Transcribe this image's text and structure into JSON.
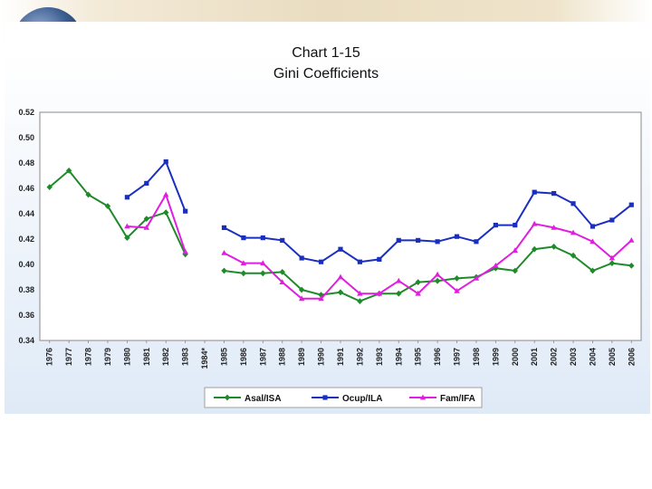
{
  "chart_data": {
    "type": "line",
    "title": "Chart   1-15",
    "subtitle": "Gini Coefficients",
    "xlabel": "",
    "ylabel": "",
    "ylim": [
      0.34,
      0.52
    ],
    "ytick_labels": [
      "0.34",
      "0.36",
      "0.38",
      "0.40",
      "0.42",
      "0.44",
      "0.46",
      "0.48",
      "0.50",
      "0.52"
    ],
    "categories": [
      "1976",
      "1977",
      "1978",
      "1979",
      "1980",
      "1981",
      "1982",
      "1983",
      "1984*",
      "1985",
      "1986",
      "1987",
      "1988",
      "1989",
      "1990",
      "1991",
      "1992",
      "1993",
      "1994",
      "1995",
      "1996",
      "1997",
      "1998",
      "1999",
      "2000",
      "2001",
      "2002",
      "2003",
      "2004",
      "2005",
      "2006"
    ],
    "legend_position": "bottom",
    "series": [
      {
        "name": "Asal/ISA",
        "color": "#1f8a2a",
        "marker": "diamond",
        "values": [
          0.461,
          0.474,
          0.455,
          0.446,
          0.421,
          0.436,
          0.441,
          0.408,
          null,
          0.395,
          0.393,
          0.393,
          0.394,
          0.38,
          0.376,
          0.378,
          0.371,
          0.377,
          0.377,
          0.386,
          0.387,
          0.389,
          0.39,
          0.397,
          0.395,
          0.412,
          0.414,
          0.407,
          0.395,
          0.401,
          0.399
        ]
      },
      {
        "name": "Ocup/ILA",
        "color": "#1a2fbf",
        "marker": "square",
        "values": [
          null,
          null,
          null,
          null,
          0.453,
          0.464,
          0.481,
          0.442,
          null,
          0.429,
          0.421,
          0.421,
          0.419,
          0.405,
          0.402,
          0.412,
          0.402,
          0.404,
          0.419,
          0.419,
          0.418,
          0.422,
          0.418,
          0.431,
          0.431,
          0.457,
          0.456,
          0.448,
          0.43,
          0.435,
          0.447
        ]
      },
      {
        "name": "Fam/IFA",
        "color": "#e01ee0",
        "marker": "triangle",
        "values": [
          null,
          null,
          null,
          null,
          0.43,
          0.429,
          0.455,
          0.41,
          null,
          0.409,
          0.401,
          0.401,
          0.386,
          0.373,
          0.373,
          0.39,
          0.377,
          0.377,
          0.387,
          0.377,
          0.392,
          0.379,
          0.389,
          0.399,
          0.411,
          0.432,
          0.429,
          0.425,
          0.418,
          0.405,
          0.419
        ]
      }
    ]
  }
}
